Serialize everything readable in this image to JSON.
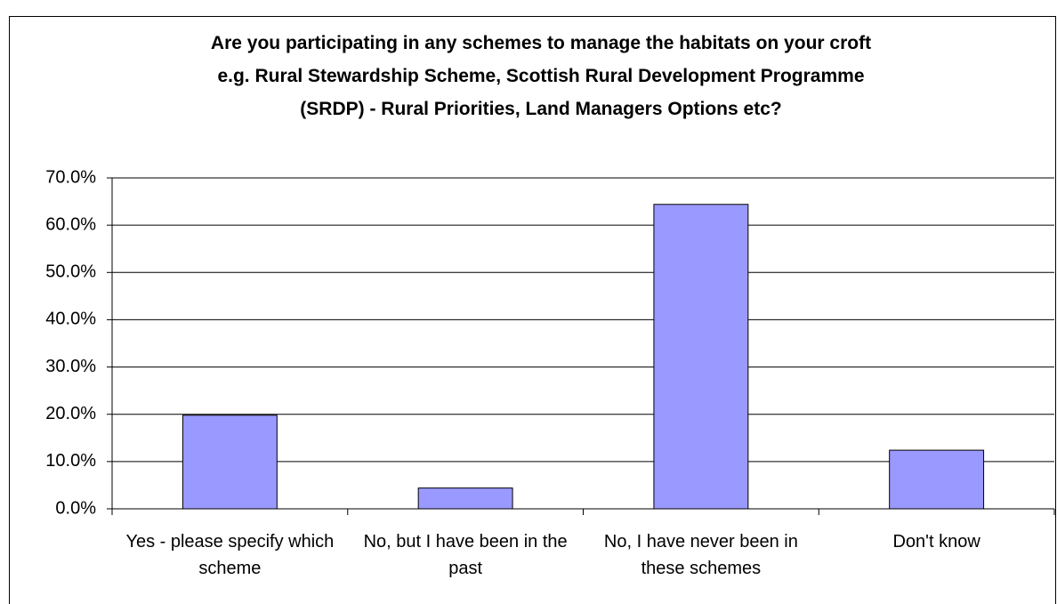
{
  "chart_data": {
    "type": "bar",
    "title": "Are you participating in any schemes to manage the habitats on your croft\ne.g. Rural Stewardship Scheme, Scottish Rural Development Programme\n(SRDP) - Rural Priorities, Land Managers Options etc?",
    "categories": [
      "Yes - please specify which scheme",
      "No, but I have been in the past",
      "No, I have never been in these schemes",
      "Don't know"
    ],
    "values": [
      19.8,
      4.4,
      64.4,
      12.4
    ],
    "color": "#9999ff",
    "ylim": [
      0,
      70
    ],
    "yticks": [
      {
        "value": 0,
        "label": "0.0%"
      },
      {
        "value": 10,
        "label": "10.0%"
      },
      {
        "value": 20,
        "label": "20.0%"
      },
      {
        "value": 30,
        "label": "30.0%"
      },
      {
        "value": 40,
        "label": "40.0%"
      },
      {
        "value": 50,
        "label": "50.0%"
      },
      {
        "value": 60,
        "label": "60.0%"
      },
      {
        "value": 70,
        "label": "70.0%"
      }
    ],
    "grid": true
  }
}
